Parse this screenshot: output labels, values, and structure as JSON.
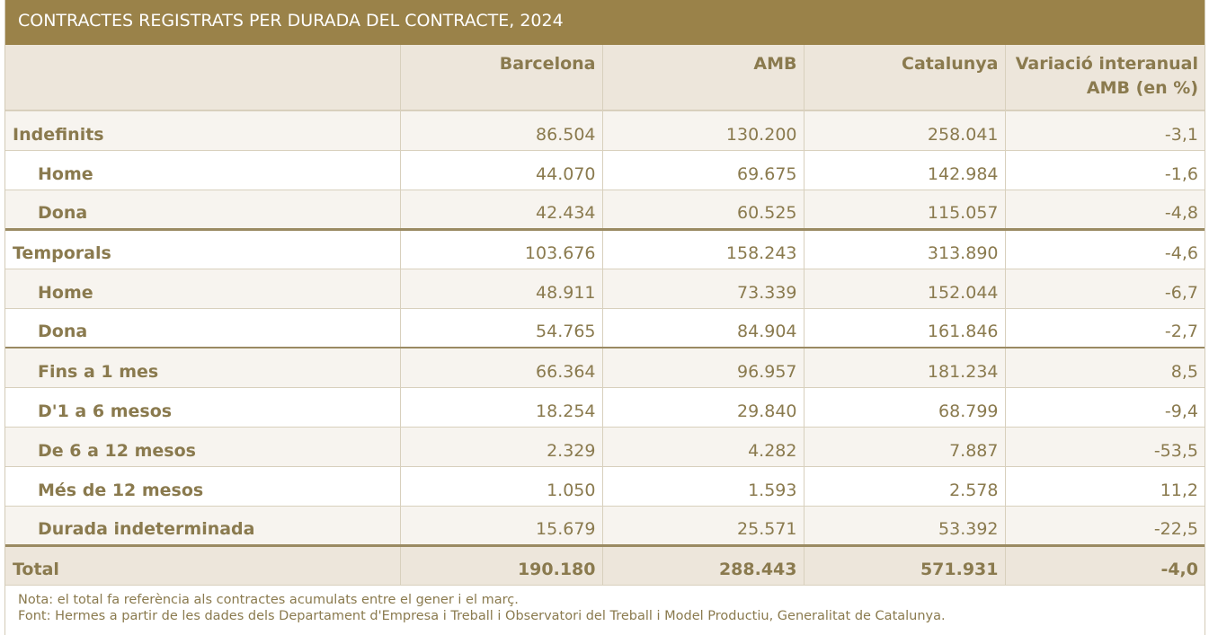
{
  "title": "CONTRACTES REGISTRATS PER DURADA DEL CONTRACTE, 2024",
  "columns": [
    "",
    "Barcelona",
    "AMB",
    "Catalunya",
    "Variació interanual AMB (en %)"
  ],
  "rows": [
    {
      "label": "Indefinits",
      "values": [
        "86.504",
        "130.200",
        "258.041",
        "-3,1"
      ]
    },
    {
      "label": "Home",
      "values": [
        "44.070",
        "69.675",
        "142.984",
        "-1,6"
      ]
    },
    {
      "label": "Dona",
      "values": [
        "42.434",
        "60.525",
        "115.057",
        "-4,8"
      ]
    },
    {
      "label": "Temporals",
      "values": [
        "103.676",
        "158.243",
        "313.890",
        "-4,6"
      ]
    },
    {
      "label": "Home",
      "values": [
        "48.911",
        "73.339",
        "152.044",
        "-6,7"
      ]
    },
    {
      "label": "Dona",
      "values": [
        "54.765",
        "84.904",
        "161.846",
        "-2,7"
      ]
    },
    {
      "label": "Fins a 1 mes",
      "values": [
        "66.364",
        "96.957",
        "181.234",
        "8,5"
      ]
    },
    {
      "label": "D'1 a 6 mesos",
      "values": [
        "18.254",
        "29.840",
        "68.799",
        "-9,4"
      ]
    },
    {
      "label": "De 6 a 12 mesos",
      "values": [
        "2.329",
        "4.282",
        "7.887",
        "-53,5"
      ]
    },
    {
      "label": "Més de 12 mesos",
      "values": [
        "1.050",
        "1.593",
        "2.578",
        "11,2"
      ]
    },
    {
      "label": "Durada indeterminada",
      "values": [
        "15.679",
        "25.571",
        "53.392",
        "-22,5"
      ]
    }
  ],
  "total": {
    "label": "Total",
    "values": [
      "190.180",
      "288.443",
      "571.931",
      "-4,0"
    ]
  },
  "notes": [
    "Nota: el total fa referència als contractes acumulats entre el gener i el març.",
    "Font: Hermes a partir de les dades dels Departament d'Empresa i Treball i Observatori del Treball i Model Productiu, Generalitat de Catalunya."
  ],
  "colors": {
    "title_bar": "#9a8249",
    "text": "#8a7a4e",
    "header_bg": "#ede6db"
  }
}
